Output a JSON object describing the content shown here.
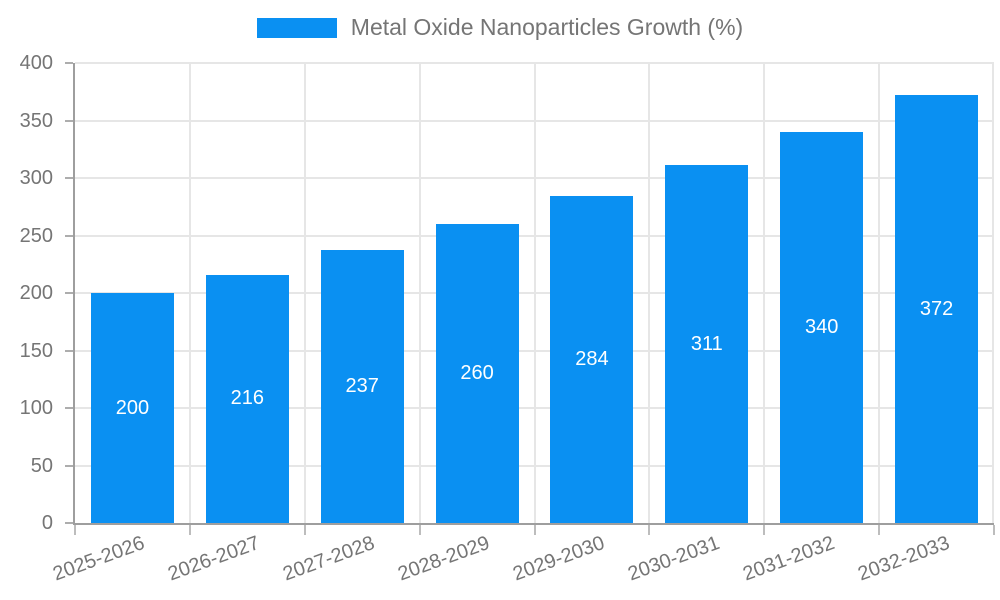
{
  "legend": {
    "label": "Metal Oxide Nanoparticles Growth (%)"
  },
  "colors": {
    "bar": "#0a90f2",
    "value_label": "#ffffff",
    "axis_text": "#757575",
    "grid": "#e6e6e6",
    "axis_line": "#9e9e9e"
  },
  "chart_data": {
    "type": "bar",
    "title": "Metal Oxide Nanoparticles Growth (%)",
    "categories": [
      "2025-2026",
      "2026-2027",
      "2027-2028",
      "2028-2029",
      "2029-2030",
      "2030-2031",
      "2031-2032",
      "2032-2033"
    ],
    "values": [
      200,
      216,
      237,
      260,
      284,
      311,
      340,
      372
    ],
    "series": [
      {
        "name": "Metal Oxide Nanoparticles Growth (%)",
        "values": [
          200,
          216,
          237,
          260,
          284,
          311,
          340,
          372
        ]
      }
    ],
    "value_labels_shown": true,
    "xlabel": "",
    "ylabel": "",
    "ylim": [
      0,
      400
    ],
    "y_ticks": [
      0,
      50,
      100,
      150,
      200,
      250,
      300,
      350,
      400
    ],
    "grid": true,
    "legend_position": "top-center",
    "x_label_rotation_deg": -20
  }
}
